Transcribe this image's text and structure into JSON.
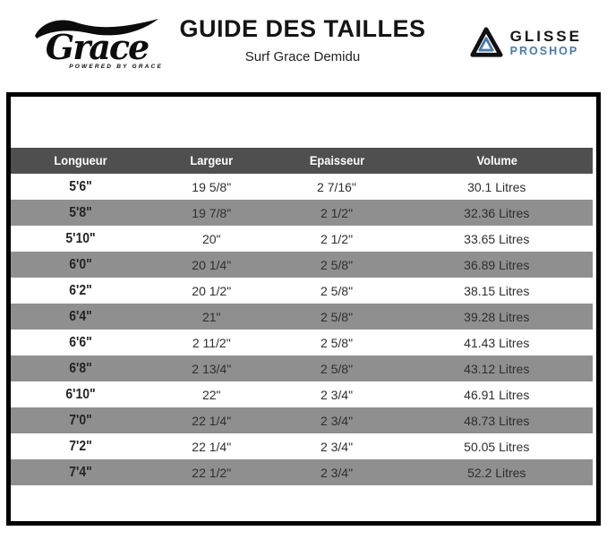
{
  "header": {
    "grace_logo": {
      "name": "Grace",
      "tagline": "POWERED BY GRACE"
    },
    "title": "GUIDE DES TAILLES",
    "subtitle": "Surf Grace Demidu",
    "glisse_logo": {
      "line1": "GLISSE",
      "line2": "PROSHOP"
    }
  },
  "colors": {
    "header_row_bg": "#4f4f4f",
    "header_row_text": "#ffffff",
    "alt_row_bg": "#8f8f8f",
    "border_black": "#000000",
    "proshop_blue": "#4a7aa8",
    "logo_black": "#111111"
  },
  "chart_data": {
    "type": "table",
    "title": "GUIDE DES TAILLES",
    "subtitle": "Surf Grace Demidu",
    "columns": [
      "Longueur",
      "Largeur",
      "Epaisseur",
      "Volume"
    ],
    "rows": [
      [
        "5'6\"",
        "19 5/8\"",
        "2 7/16\"",
        "30.1 Litres"
      ],
      [
        "5'8\"",
        "19 7/8\"",
        "2 1/2\"",
        "32.36 Litres"
      ],
      [
        "5'10\"",
        "20\"",
        "2 1/2\"",
        "33.65 Litres"
      ],
      [
        "6'0\"",
        "20 1/4\"",
        "2 5/8\"",
        "36.89 Litres"
      ],
      [
        "6'2\"",
        "20 1/2\"",
        "2 5/8\"",
        "38.15 Litres"
      ],
      [
        "6'4\"",
        "21\"",
        "2 5/8\"",
        "39.28 Litres"
      ],
      [
        "6'6\"",
        "2 11/2\"",
        "2 5/8\"",
        "41.43 Litres"
      ],
      [
        "6'8\"",
        "2 13/4\"",
        "2 5/8\"",
        "43.12 Litres"
      ],
      [
        "6'10\"",
        "22\"",
        "2 3/4\"",
        "46.91 Litres"
      ],
      [
        "7'0\"",
        "22 1/4\"",
        "2 3/4\"",
        "48.73 Litres"
      ],
      [
        "7'2\"",
        "22 1/4\"",
        "2 3/4\"",
        "50.05 Litres"
      ],
      [
        "7'4\"",
        "22 1/2\"",
        "2 3/4\"",
        "52.2 Litres"
      ]
    ]
  }
}
